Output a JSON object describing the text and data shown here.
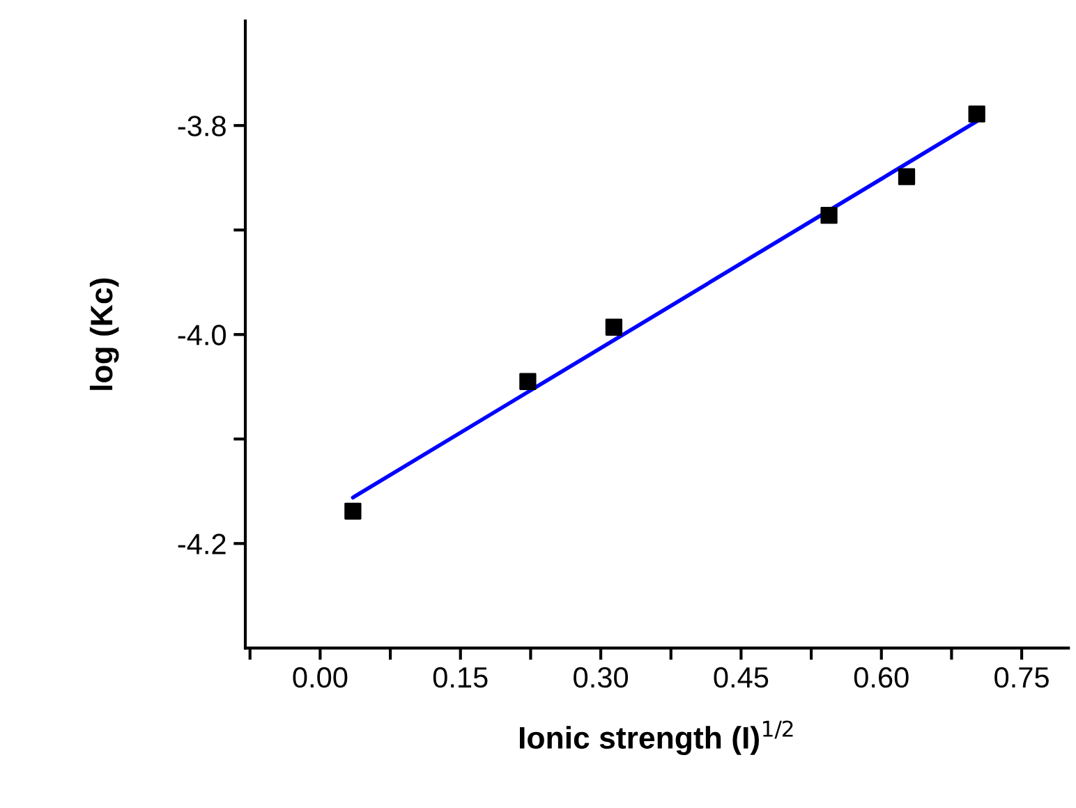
{
  "chart_data": {
    "type": "scatter",
    "xlabel": "Ionic strength (I)$^{1/2}$",
    "ylabel": "log (Kc)",
    "series": [
      {
        "color": "#000000",
        "marker": "square",
        "x": [
          0.035,
          0.222,
          0.314,
          0.544,
          0.627,
          0.702
        ],
        "values": [
          -4.169,
          -4.045,
          -3.993,
          -3.886,
          -3.849,
          -3.789
        ]
      },
      {
        "type": "line",
        "color": "#0000ff",
        "marker": "none",
        "line_style": "solid",
        "x": [
          0.035,
          0.702
        ],
        "values": [
          -4.156,
          -3.796
        ]
      }
    ],
    "xlim": [
      -0.08,
      0.8
    ],
    "ylim": [
      -4.3,
      -3.7
    ],
    "xticks": [
      {
        "value": -0.075,
        "label": null
      },
      {
        "value": 0.0,
        "label": "0.00"
      },
      {
        "value": 0.075,
        "label": null
      },
      {
        "value": 0.15,
        "label": "0.15"
      },
      {
        "value": 0.225,
        "label": null
      },
      {
        "value": 0.3,
        "label": "0.30"
      },
      {
        "value": 0.375,
        "label": null
      },
      {
        "value": 0.45,
        "label": "0.45"
      },
      {
        "value": 0.525,
        "label": null
      },
      {
        "value": 0.6,
        "label": "0.60"
      },
      {
        "value": 0.675,
        "label": null
      },
      {
        "value": 0.75,
        "label": "0.75"
      }
    ],
    "yticks": [
      {
        "value": -3.8,
        "label": "-3.8"
      },
      {
        "value": -3.9,
        "label": null
      },
      {
        "value": -4.0,
        "label": "-4.0"
      },
      {
        "value": -4.1,
        "label": null
      },
      {
        "value": -4.2,
        "label": "-4.2"
      }
    ],
    "grid": false
  }
}
